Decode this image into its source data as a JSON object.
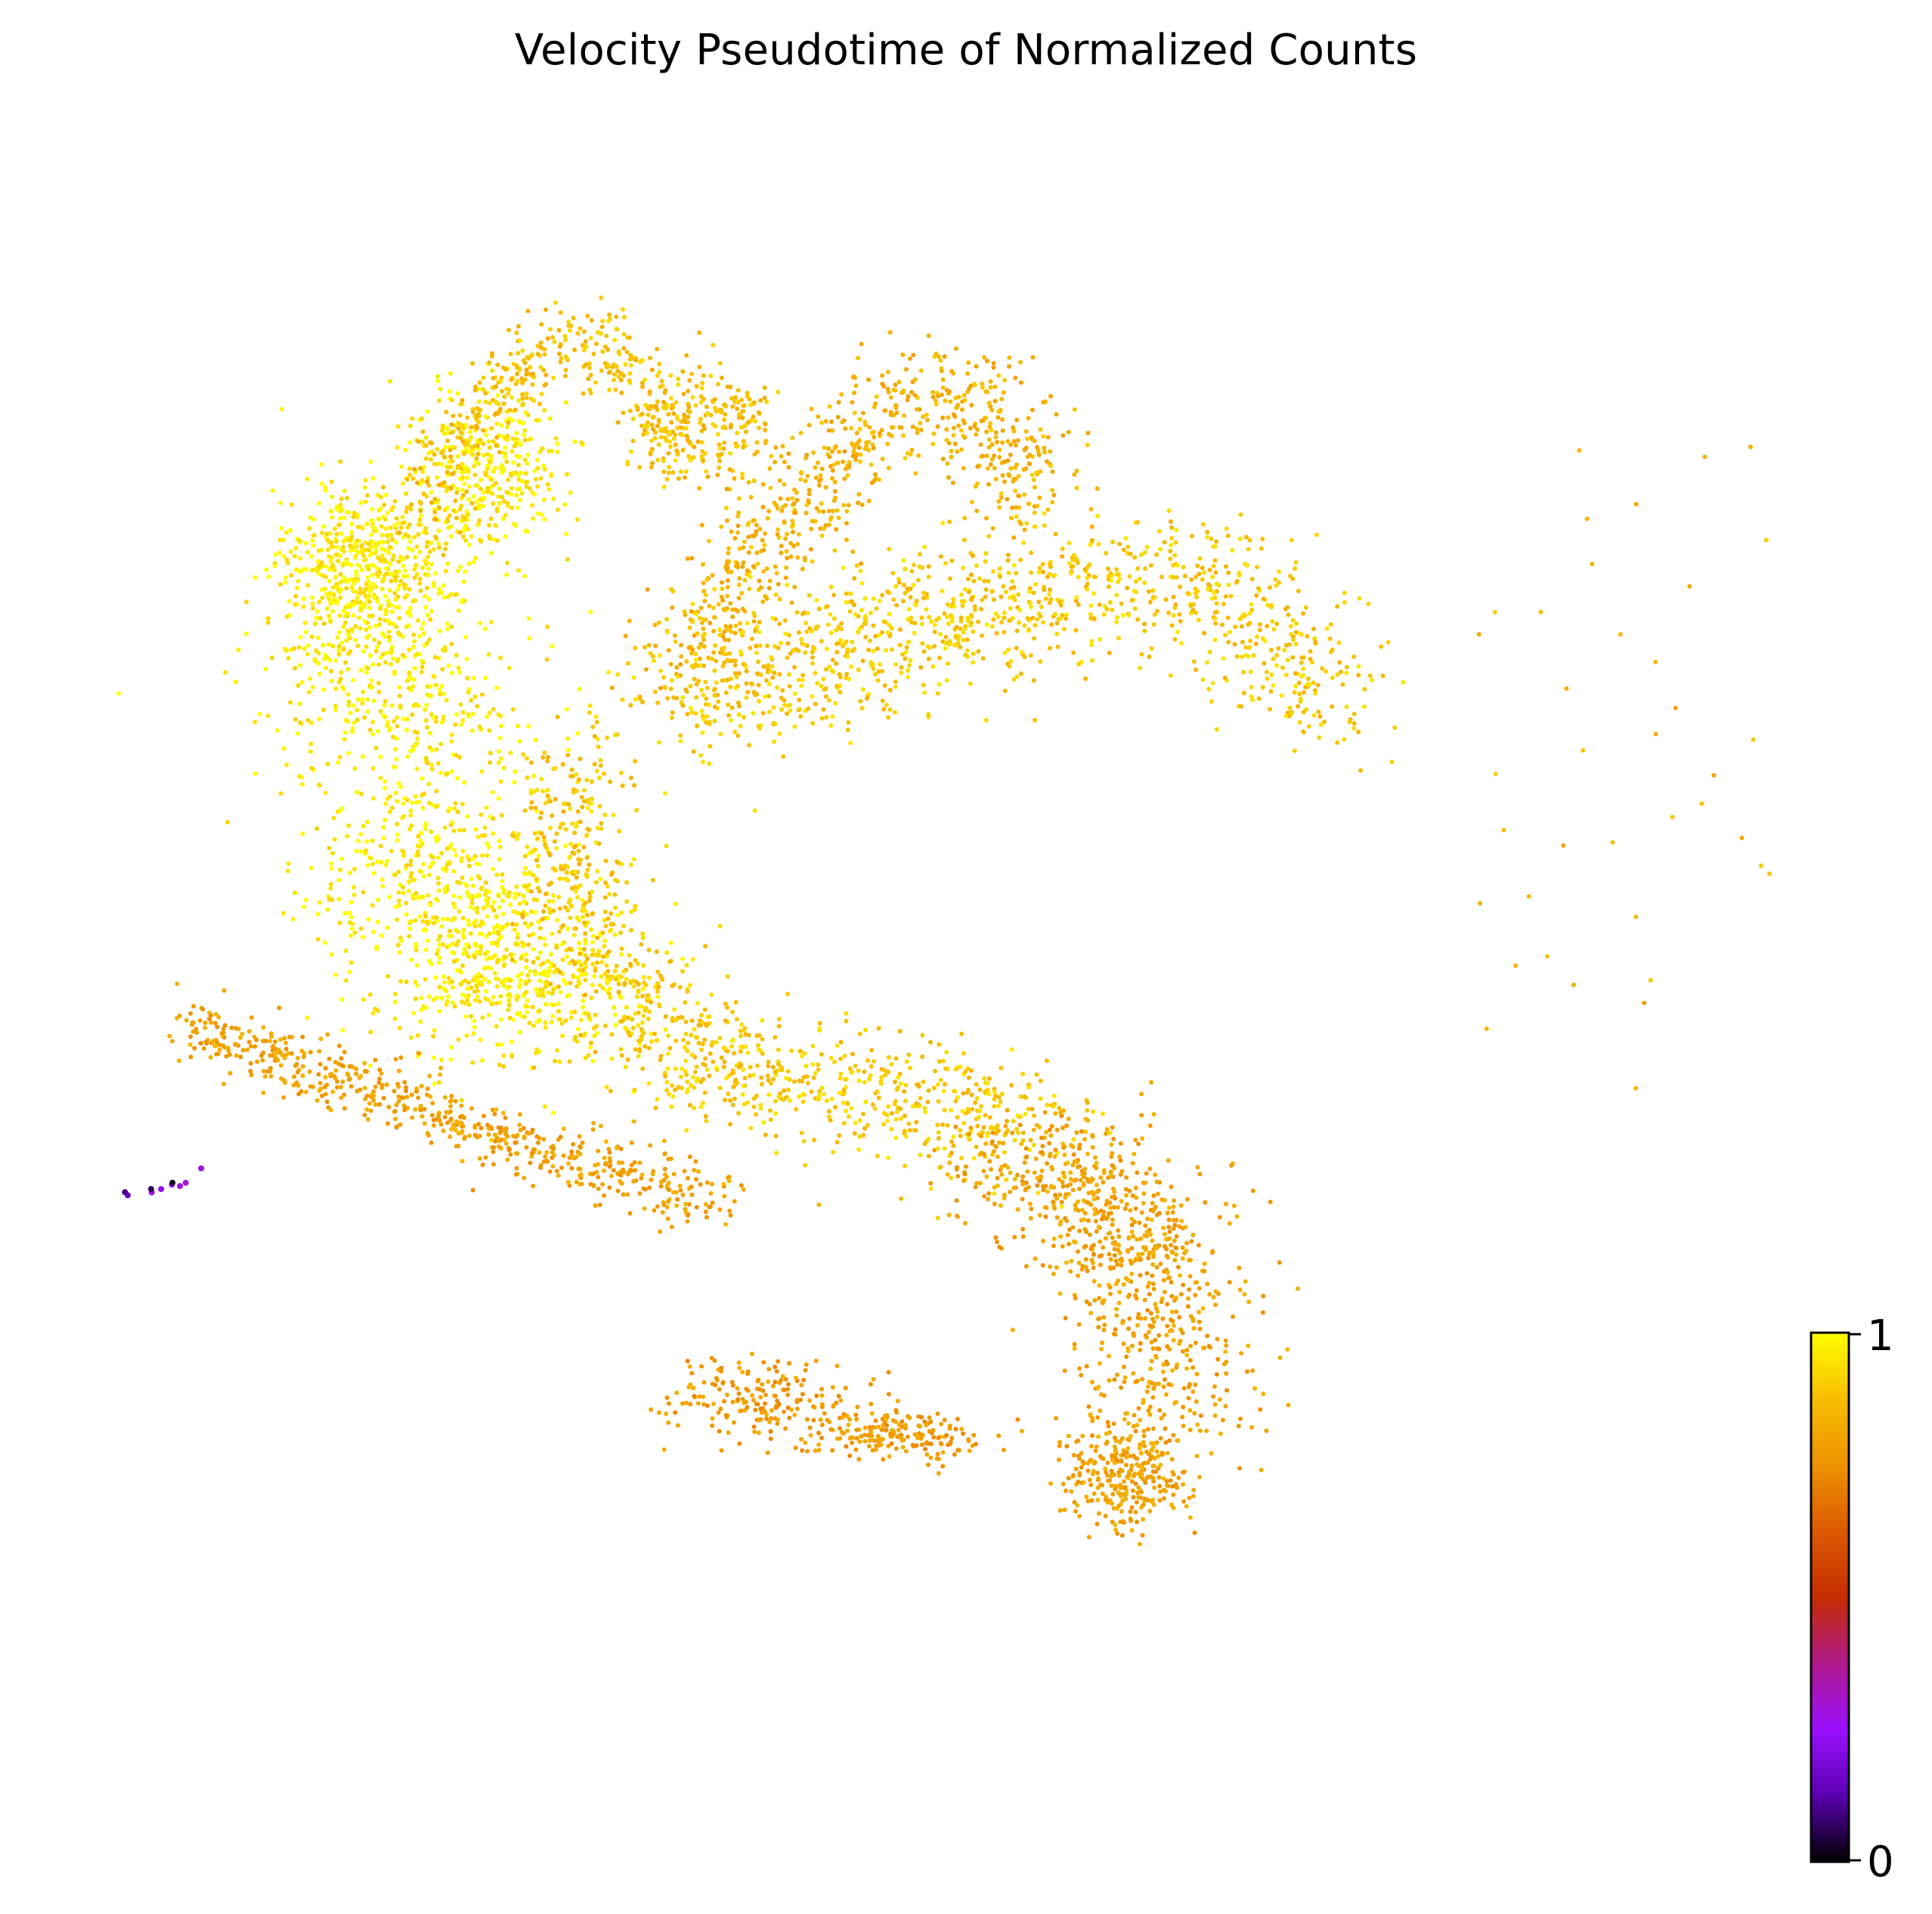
{
  "chart_data": {
    "type": "scatter",
    "title": "Velocity Pseudotime of Normalized Counts",
    "xlabel": "",
    "ylabel": "",
    "axes_visible": false,
    "grid": false,
    "legend": "none",
    "color_scale": {
      "name": "gnuplot",
      "min": 0,
      "max": 1,
      "tick_labels": [
        "0",
        "1"
      ],
      "stops": [
        "#000000",
        "#5a00b0",
        "#9b10ff",
        "#b01a8c",
        "#c42d00",
        "#dc5a00",
        "#ee9200",
        "#f7bd00",
        "#ffff00"
      ],
      "placement": "right"
    },
    "groups": [
      {
        "region": "large-left-lobe",
        "color_value": 0.97,
        "approx_points": 9000
      },
      {
        "region": "upper-loop",
        "color_value": 0.88,
        "approx_points": 2500
      },
      {
        "region": "upper-right-arc",
        "color_value": 0.85,
        "approx_points": 3000
      },
      {
        "region": "right-arm",
        "color_value": 0.9,
        "approx_points": 4500
      },
      {
        "region": "central-stream",
        "color_value": 0.9,
        "approx_points": 4000
      },
      {
        "region": "left-horizontal-branch",
        "color_value": 0.8,
        "approx_points": 2500
      },
      {
        "region": "lower-right-cluster",
        "color_value": 0.8,
        "approx_points": 4500
      },
      {
        "region": "lower-middle-cluster",
        "color_value": 0.78,
        "approx_points": 1500
      },
      {
        "region": "root-tip",
        "color_value": 0.05,
        "approx_points": 40
      },
      {
        "region": "sparse-outliers",
        "color_value": 0.85,
        "approx_points": 150
      }
    ]
  }
}
